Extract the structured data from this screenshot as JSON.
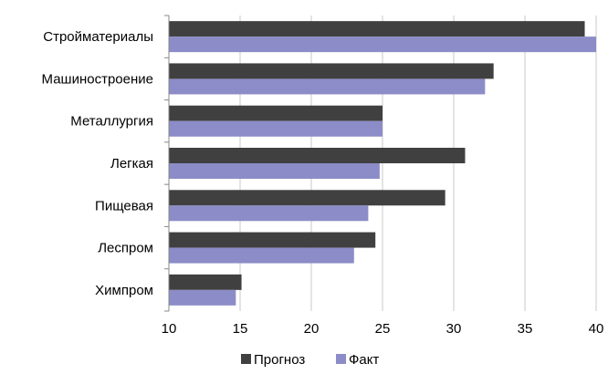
{
  "chart_data": {
    "type": "bar",
    "orientation": "horizontal",
    "title": "",
    "xlabel": "",
    "ylabel": "",
    "categories": [
      "Стройматериалы",
      "Машиностроение",
      "Металлургия",
      "Легкая",
      "Пищевая",
      "Леспром",
      "Химпром"
    ],
    "series": [
      {
        "name": "Прогноз",
        "color": "#404040",
        "values": [
          39.2,
          32.8,
          25.0,
          30.8,
          29.4,
          24.5,
          15.1
        ]
      },
      {
        "name": "Факт",
        "color": "#8c8cc8",
        "values": [
          40.0,
          32.2,
          25.0,
          24.8,
          24.0,
          23.0,
          14.7
        ]
      }
    ],
    "xlim": [
      10,
      40
    ],
    "xticks": [
      "10",
      "15",
      "20",
      "25",
      "30",
      "35",
      "40"
    ],
    "grid": "vertical",
    "legend_position": "bottom"
  }
}
